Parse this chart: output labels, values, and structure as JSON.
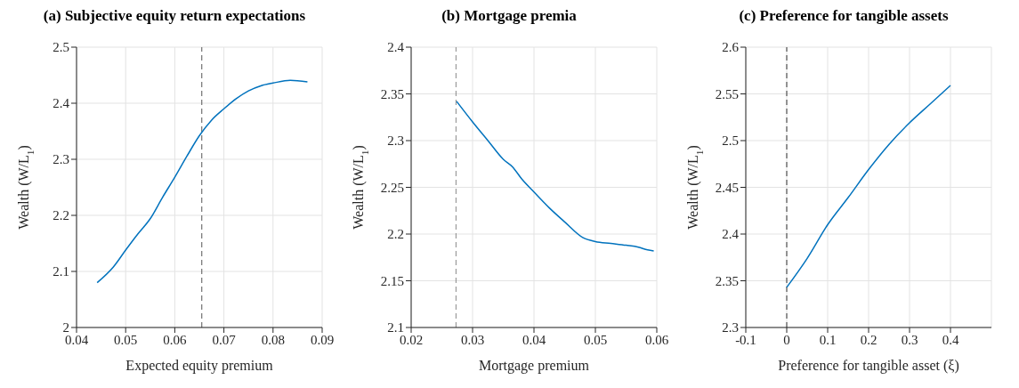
{
  "chart_data": [
    {
      "type": "line",
      "title": "(a) Subjective equity return expectations",
      "xlabel": "Expected equity premium",
      "ylabel": "Wealth (W/L$_{1}$)",
      "x": [
        0.0442,
        0.0475,
        0.05,
        0.0525,
        0.055,
        0.0575,
        0.06,
        0.0625,
        0.065,
        0.0675,
        0.07,
        0.0725,
        0.075,
        0.0775,
        0.08,
        0.0835,
        0.087
      ],
      "series": [
        {
          "color": "#0072bd",
          "values": [
            2.08,
            2.108,
            2.138,
            2.167,
            2.194,
            2.232,
            2.268,
            2.306,
            2.342,
            2.37,
            2.39,
            2.408,
            2.422,
            2.431,
            2.436,
            2.441,
            2.438
          ]
        }
      ],
      "xlim": [
        0.04,
        0.09
      ],
      "xticks": [
        0.04,
        0.05,
        0.06,
        0.07,
        0.08,
        0.09
      ],
      "ylim": [
        2,
        2.5
      ],
      "yticks": [
        2,
        2.1,
        2.2,
        2.3,
        2.4,
        2.5
      ],
      "grid": true,
      "ref_lines": [
        {
          "axis": "x",
          "value": 0.0655,
          "color": "#555555",
          "line_style": "dashed"
        }
      ]
    },
    {
      "type": "line",
      "title": "(b) Mortgage premia",
      "xlabel": "Mortgage premium",
      "ylabel": "Wealth (W/L$_{1}$)",
      "x": [
        0.0274,
        0.03,
        0.0325,
        0.035,
        0.0365,
        0.038,
        0.04,
        0.0425,
        0.045,
        0.048,
        0.05,
        0.0525,
        0.055,
        0.057,
        0.0585,
        0.0595
      ],
      "series": [
        {
          "color": "#0072bd",
          "values": [
            2.342,
            2.32,
            2.3,
            2.28,
            2.272,
            2.259,
            2.245,
            2.228,
            2.213,
            2.196,
            2.192,
            2.19,
            2.188,
            2.186,
            2.183,
            2.182
          ]
        }
      ],
      "xlim": [
        0.02,
        0.06
      ],
      "xticks": [
        0.02,
        0.03,
        0.04,
        0.05,
        0.06
      ],
      "ylim": [
        2.1,
        2.4
      ],
      "yticks": [
        2.1,
        2.15,
        2.2,
        2.25,
        2.3,
        2.35,
        2.4
      ],
      "grid": true,
      "ref_lines": [
        {
          "axis": "x",
          "value": 0.0273,
          "color": "#888888",
          "line_style": "dashed"
        }
      ]
    },
    {
      "type": "line",
      "title": "(c) Preference for tangible assets",
      "xlabel": "Preference for tangible asset (ξ)",
      "ylabel": "Wealth (W/L$_{1}$)",
      "x": [
        0,
        0.05,
        0.1,
        0.15,
        0.2,
        0.25,
        0.3,
        0.35,
        0.4
      ],
      "series": [
        {
          "color": "#0072bd",
          "values": [
            2.343,
            2.374,
            2.41,
            2.439,
            2.469,
            2.496,
            2.519,
            2.539,
            2.559
          ]
        }
      ],
      "xlim": [
        -0.1,
        0.5
      ],
      "xticks": [
        -0.1,
        0,
        0.1,
        0.2,
        0.3,
        0.4
      ],
      "ylim": [
        2.3,
        2.6
      ],
      "yticks": [
        2.3,
        2.35,
        2.4,
        2.45,
        2.5,
        2.55,
        2.6
      ],
      "grid": true,
      "ref_lines": [
        {
          "axis": "x",
          "value": 0,
          "color": "#333333",
          "line_style": "dashed"
        }
      ]
    }
  ]
}
